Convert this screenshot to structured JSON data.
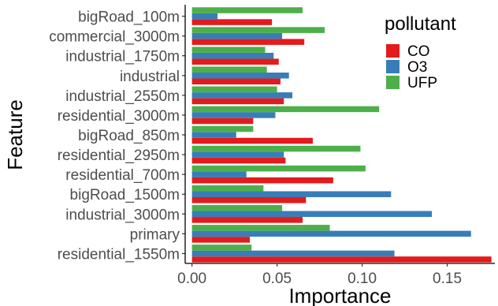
{
  "chart_data": {
    "type": "bar",
    "orientation": "horizontal",
    "xlabel": "Importance",
    "ylabel": "Feature",
    "xlim": [
      -0.004,
      0.178
    ],
    "xticks": [
      "0.00",
      "0.05",
      "0.10",
      "0.15"
    ],
    "xtick_values": [
      0.0,
      0.05,
      0.1,
      0.15
    ],
    "grid": false,
    "legend": {
      "title": "pollutant",
      "position": "top-right"
    },
    "categories": [
      "bigRoad_100m",
      "commercial_3000m",
      "industrial_1750m",
      "industrial",
      "industrial_2550m",
      "residential_3000m",
      "bigRoad_850m",
      "residential_2950m",
      "residential_700m",
      "bigRoad_1500m",
      "industrial_3000m",
      "primary",
      "residential_1550m"
    ],
    "series": [
      {
        "name": "CO",
        "color": "#E41A1C",
        "values": [
          0.047,
          0.066,
          0.051,
          0.052,
          0.054,
          0.036,
          0.071,
          0.055,
          0.083,
          0.067,
          0.065,
          0.034,
          0.176
        ]
      },
      {
        "name": "O3",
        "color": "#377EB8",
        "values": [
          0.015,
          0.053,
          0.048,
          0.057,
          0.059,
          0.049,
          0.026,
          0.054,
          0.032,
          0.117,
          0.141,
          0.164,
          0.119
        ]
      },
      {
        "name": "UFP",
        "color": "#4DAF4A",
        "values": [
          0.065,
          0.078,
          0.043,
          0.044,
          0.05,
          0.11,
          0.036,
          0.099,
          0.102,
          0.042,
          0.053,
          0.081,
          0.035
        ]
      }
    ]
  }
}
